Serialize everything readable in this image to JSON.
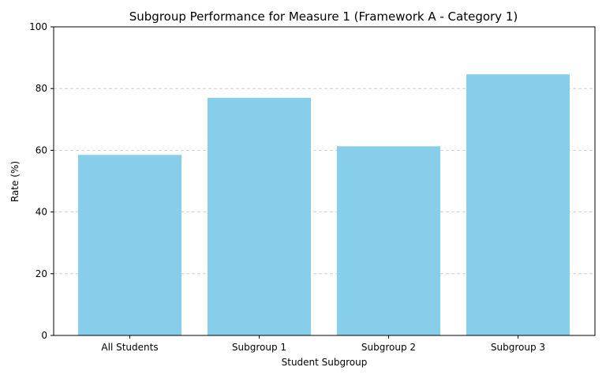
{
  "chart_data": {
    "type": "bar",
    "title": "Subgroup Performance for Measure 1 (Framework A - Category 1)",
    "xlabel": "Student Subgroup",
    "ylabel": "Rate (%)",
    "categories": [
      "All Students",
      "Subgroup 1",
      "Subgroup 2",
      "Subgroup 3"
    ],
    "values": [
      58.5,
      77.0,
      61.3,
      84.6
    ],
    "ylim": [
      0,
      100
    ],
    "yticks": [
      0,
      20,
      40,
      60,
      80,
      100
    ],
    "grid": "horizontal dashed",
    "legend": "none",
    "colors": {
      "bar": "#87ceeb",
      "grid": "#c8c8c8",
      "axis": "#000000"
    }
  }
}
